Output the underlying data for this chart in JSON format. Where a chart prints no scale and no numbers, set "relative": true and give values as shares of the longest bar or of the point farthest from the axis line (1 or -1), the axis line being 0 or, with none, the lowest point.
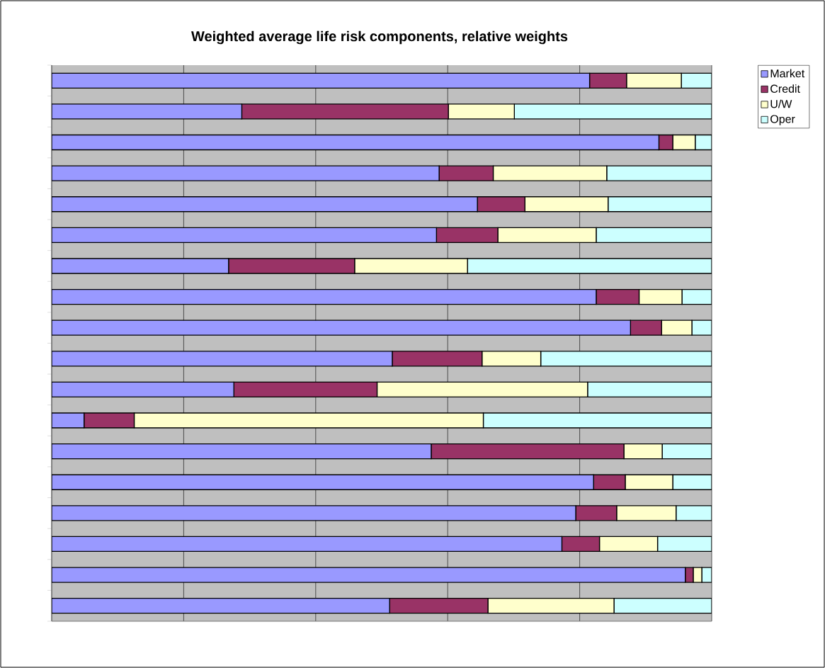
{
  "chart_data": {
    "type": "bar",
    "orientation": "horizontal",
    "stacked": true,
    "relative": true,
    "grid": "x",
    "legend": "top right",
    "title": "Weighted average life risk components, relative weights",
    "categories": [
      null,
      null,
      null,
      null,
      null,
      null,
      null,
      null,
      null,
      null,
      null,
      null,
      null,
      null,
      null,
      null,
      null,
      null
    ],
    "series": [
      {
        "name": "Market",
        "color": "#9999ff",
        "values": [
          0.815,
          0.288,
          0.92,
          0.587,
          0.645,
          0.583,
          0.268,
          0.825,
          0.877,
          0.516,
          0.276,
          0.049,
          0.575,
          0.821,
          0.794,
          0.773,
          0.96,
          0.512
        ]
      },
      {
        "name": "Credit",
        "color": "#993366",
        "values": [
          0.056,
          0.313,
          0.021,
          0.082,
          0.072,
          0.093,
          0.191,
          0.065,
          0.047,
          0.136,
          0.217,
          0.076,
          0.292,
          0.048,
          0.062,
          0.057,
          0.012,
          0.149
        ]
      },
      {
        "name": "U/W",
        "color": "#ffffcc",
        "values": [
          0.083,
          0.1,
          0.034,
          0.172,
          0.126,
          0.149,
          0.171,
          0.065,
          0.046,
          0.089,
          0.319,
          0.529,
          0.058,
          0.072,
          0.09,
          0.088,
          0.013,
          0.191
        ]
      },
      {
        "name": "Oper",
        "color": "#ccffff",
        "values": [
          0.046,
          0.299,
          0.025,
          0.159,
          0.157,
          0.175,
          0.37,
          0.045,
          0.03,
          0.259,
          0.188,
          0.346,
          0.075,
          0.059,
          0.054,
          0.082,
          0.015,
          0.148
        ]
      }
    ]
  }
}
